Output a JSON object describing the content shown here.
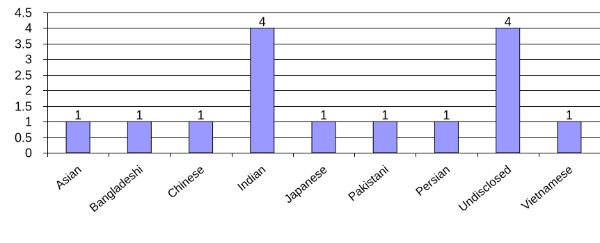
{
  "chart_data": {
    "type": "bar",
    "title": "",
    "xlabel": "",
    "ylabel": "",
    "categories": [
      "Asian",
      "Bangladeshi",
      "Chinese",
      "Indian",
      "Japanese",
      "Pakistani",
      "Persian",
      "Undisclosed",
      "Vietnamese"
    ],
    "values": [
      1,
      1,
      1,
      4,
      1,
      1,
      1,
      4,
      1
    ],
    "data_labels": [
      "1",
      "1",
      "1",
      "4",
      "1",
      "1",
      "1",
      "4",
      "1"
    ],
    "ylim": [
      0,
      4.5
    ],
    "y_ticks": [
      0,
      0.5,
      1,
      1.5,
      2,
      2.5,
      3,
      3.5,
      4,
      4.5
    ],
    "y_tick_labels": [
      "0",
      "0.5",
      "1",
      "1.5",
      "2",
      "2.5",
      "3",
      "3.5",
      "4",
      "4.5"
    ],
    "grid": true,
    "legend": "none",
    "colors": {
      "bar_fill": "#9999ff",
      "bar_stroke": "#000000",
      "grid": "#000000",
      "axis": "#000000"
    }
  }
}
